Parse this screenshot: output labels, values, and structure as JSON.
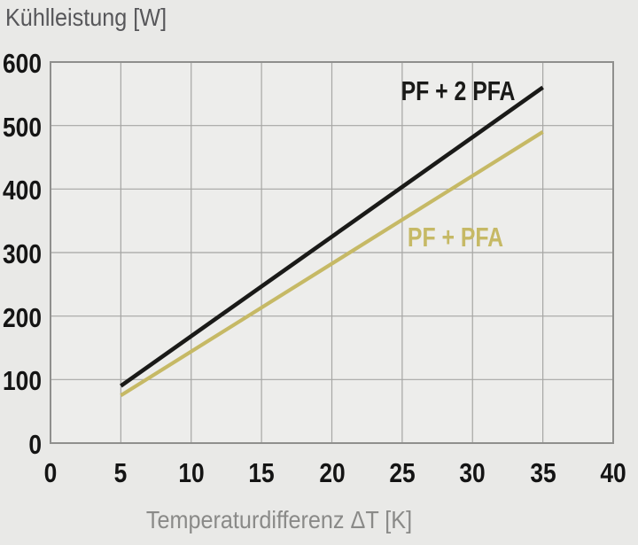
{
  "chart_data": {
    "type": "line",
    "title": "",
    "ylabel": "Kühlleistung [W]",
    "xlabel": "Temperaturdifferenz ΔT [K]",
    "xlim": [
      0,
      40
    ],
    "ylim": [
      0,
      600
    ],
    "xticks": [
      0,
      5,
      10,
      15,
      20,
      25,
      30,
      35,
      40
    ],
    "yticks": [
      0,
      100,
      200,
      300,
      400,
      500,
      600
    ],
    "grid": true,
    "legend_position": "inline",
    "series": [
      {
        "name": "PF + 2 PFA",
        "color": "#1a1a18",
        "x": [
          5,
          35
        ],
        "y": [
          90,
          560
        ],
        "label_x": 29.0,
        "label_y": 554
      },
      {
        "name": "PF + PFA",
        "color": "#c6b965",
        "x": [
          5,
          35
        ],
        "y": [
          75,
          490
        ],
        "label_x": 28.8,
        "label_y": 324
      }
    ]
  },
  "style": {
    "page_bg": "#e9e9e7",
    "plot_bg": "#ededeb",
    "grid_color": "#a6a6a4",
    "border_color": "#8f8f8d",
    "tick_color": "#141414",
    "axis_title_color": "#8a8a88",
    "chart_title_color": "#57575a"
  }
}
